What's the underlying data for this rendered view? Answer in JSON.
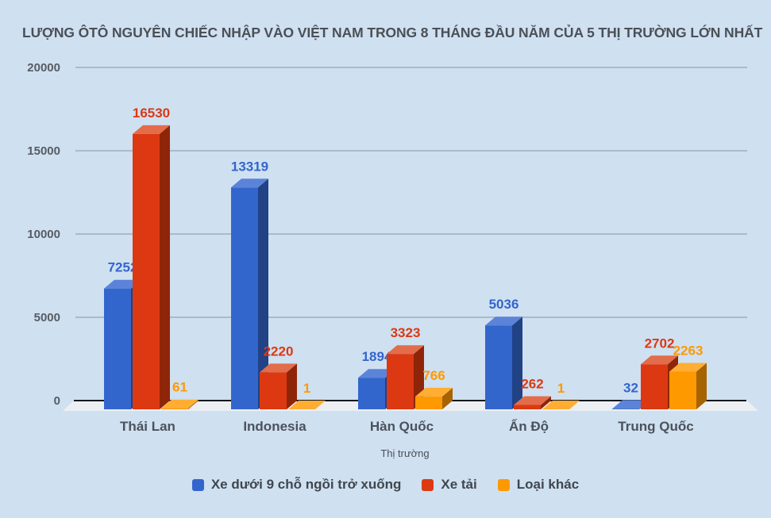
{
  "title": "LƯỢNG ÔTÔ NGUYÊN CHIẾC NHẬP VÀO VIỆT NAM TRONG 8 THÁNG ĐẦU NĂM CỦA 5 THỊ TRƯỜNG LỚN NHẤT",
  "chart_data": {
    "type": "bar",
    "style": "3d-grouped-columns",
    "title": "LƯỢNG ÔTÔ NGUYÊN CHIẾC NHẬP VÀO VIỆT NAM TRONG 8 THÁNG ĐẦU NĂM CỦA 5 THỊ TRƯỜNG LỚN NHẤT",
    "categories": [
      "Thái Lan",
      "Indonesia",
      "Hàn Quốc",
      "Ấn Độ",
      "Trung Quốc"
    ],
    "series": [
      {
        "name": "Xe dưới 9 chỗ ngồi trở xuống",
        "values": [
          7252,
          13319,
          1894,
          5036,
          32
        ],
        "color": {
          "front": "#3366CC",
          "top": "#5B83D9",
          "side": "#214285"
        }
      },
      {
        "name": "Xe tải",
        "values": [
          16530,
          2220,
          3323,
          262,
          2702
        ],
        "color": {
          "front": "#DC3912",
          "top": "#E36C4B",
          "side": "#8F2508"
        }
      },
      {
        "name": "Loại khác",
        "values": [
          61,
          1,
          766,
          1,
          2263
        ],
        "color": {
          "front": "#FF9900",
          "top": "#FFAD33",
          "side": "#A66300"
        }
      }
    ],
    "xlabel": "Thị trường",
    "ylabel": "",
    "ylim": [
      0,
      20000
    ],
    "yticks": [
      0,
      5000,
      10000,
      15000,
      20000
    ],
    "grid": true,
    "legend_position": "bottom",
    "data_labels": true,
    "colors_misc": {
      "background": "#CFE0F1",
      "gridline": "#A2ADBA",
      "axis_line": "#15181C",
      "floor": "#ECEFF3",
      "tick_text": "#575C63",
      "category_text": "#4C525A",
      "title_text": "#4A5056",
      "legend_text": "#40464D"
    }
  }
}
